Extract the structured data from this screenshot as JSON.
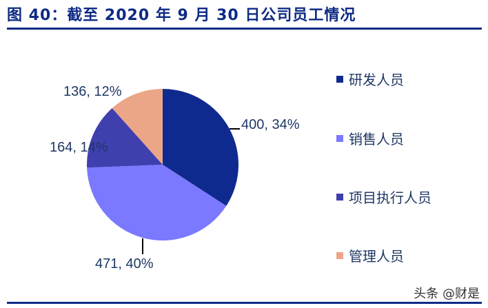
{
  "header": {
    "title": "图 40：截至 2020 年 9 月 30 日公司员工情况"
  },
  "watermark": "头条 @财是",
  "chart_data": {
    "type": "pie",
    "title": "图 40：截至 2020 年 9 月 30 日公司员工情况",
    "categories": [
      "研发人员",
      "销售人员",
      "项目执行人员",
      "管理人员"
    ],
    "values": [
      400,
      471,
      164,
      136
    ],
    "percentages": [
      34,
      40,
      14,
      12
    ],
    "colors": [
      "#0f2a8f",
      "#7b79ff",
      "#3f3fae",
      "#eba688"
    ],
    "data_labels": [
      "400, 34%",
      "471, 40%",
      "164, 14%",
      "136, 12%"
    ],
    "legend_position": "right",
    "start_angle": "12 o'clock, clockwise"
  },
  "labels": {
    "rd": "400, 34%",
    "sales": "471, 40%",
    "project": "164, 14%",
    "mgmt": "136, 12%"
  },
  "legend": {
    "items": [
      {
        "label": "研发人员",
        "color": "#0f2a8f"
      },
      {
        "label": "销售人员",
        "color": "#7b79ff"
      },
      {
        "label": "项目执行人员",
        "color": "#3f3fae"
      },
      {
        "label": "管理人员",
        "color": "#eba688"
      }
    ]
  }
}
